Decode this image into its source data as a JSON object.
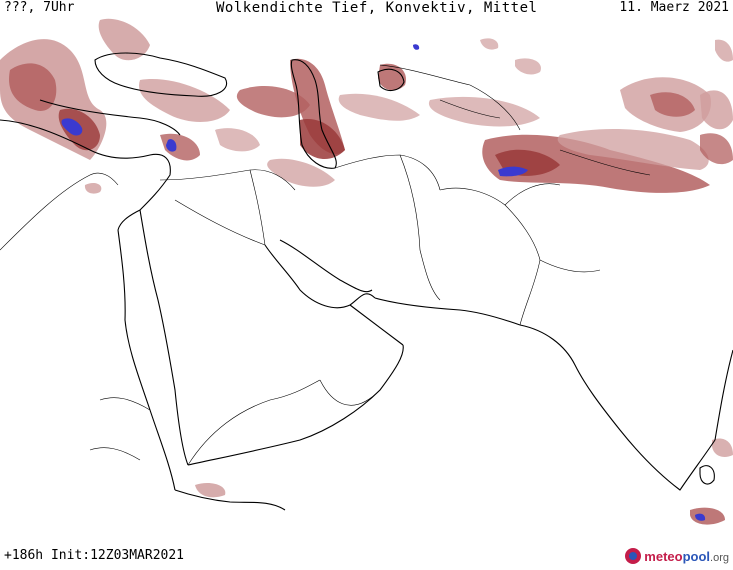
{
  "header": {
    "left": "???, 7Uhr",
    "title": "Wolkendichte  Tief, Konvektiv, Mittel",
    "date": "11. Maerz 2021"
  },
  "footer": {
    "run_info": "+186h  Init:12Z03MAR2021"
  },
  "brand": {
    "part1": "meteo",
    "part2": "pool",
    "part3": ".org"
  },
  "colors": {
    "cloud_light": "#cf9d9d",
    "cloud_medium": "#b36060",
    "cloud_dense": "#9a3a3a",
    "convective": "#3a3ad0",
    "land_outline": "#000000",
    "border": "#000000"
  }
}
